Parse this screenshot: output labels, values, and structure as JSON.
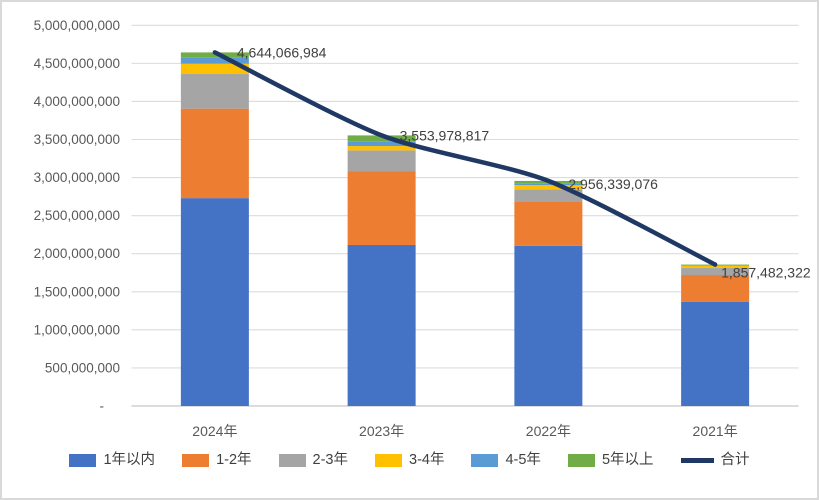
{
  "window": {
    "background": "#ffffff",
    "border_color": "#d9d9d9"
  },
  "axes": {
    "y_tick_labels": [
      "5,000,000,000",
      "4,500,000,000",
      "4,000,000,000",
      "3,500,000,000",
      "3,000,000,000",
      "2,500,000,000",
      "2,000,000,000",
      "1,500,000,000",
      "1,000,000,000",
      "500,000,000",
      "-"
    ],
    "tick_label_color": "#595959",
    "gridline_color": "#dcdcdc",
    "axis_line_color": "#d0d0d0",
    "data_label_color": "#404040"
  },
  "legend": {
    "text_color": "#404040",
    "position": "bottom"
  },
  "chart_data": {
    "type": "bar",
    "subtype": "stacked-column-with-total-line",
    "categories": [
      "2024年",
      "2023年",
      "2022年",
      "2021年"
    ],
    "series": [
      {
        "name": "1年以内",
        "type": "bar",
        "color": "#4472C4",
        "values": [
          2730000000,
          2115000000,
          2105000000,
          1370000000
        ]
      },
      {
        "name": "1-2年",
        "type": "bar",
        "color": "#ED7D31",
        "values": [
          1175000000,
          965000000,
          585000000,
          350000000
        ]
      },
      {
        "name": "2-3年",
        "type": "bar",
        "color": "#A5A5A5",
        "values": [
          455000000,
          277000000,
          155000000,
          92000000
        ]
      },
      {
        "name": "3-4年",
        "type": "bar",
        "color": "#FFC000",
        "values": [
          135000000,
          57000000,
          57000000,
          33000000
        ]
      },
      {
        "name": "4-5年",
        "type": "bar",
        "color": "#5B9BD5",
        "values": [
          85000000,
          57000000,
          24000000,
          8000000
        ]
      },
      {
        "name": "5年以上",
        "type": "bar",
        "color": "#70AD47",
        "values": [
          64000000,
          83000000,
          30000000,
          4000000
        ]
      },
      {
        "name": "合计",
        "type": "line",
        "color": "#1F3864",
        "values": [
          4644066984,
          3553978817,
          2956339076,
          1857482322
        ]
      }
    ],
    "data_labels": [
      "4,644,066,984",
      "3,553,978,817",
      "2,956,339,076",
      "1,857,482,322"
    ],
    "data_labels_series": "合计",
    "xlabel": "",
    "ylabel": "",
    "title": "",
    "ylim": [
      0,
      5000000000
    ],
    "y_step": 500000000,
    "grid": true,
    "legend_position": "bottom"
  }
}
